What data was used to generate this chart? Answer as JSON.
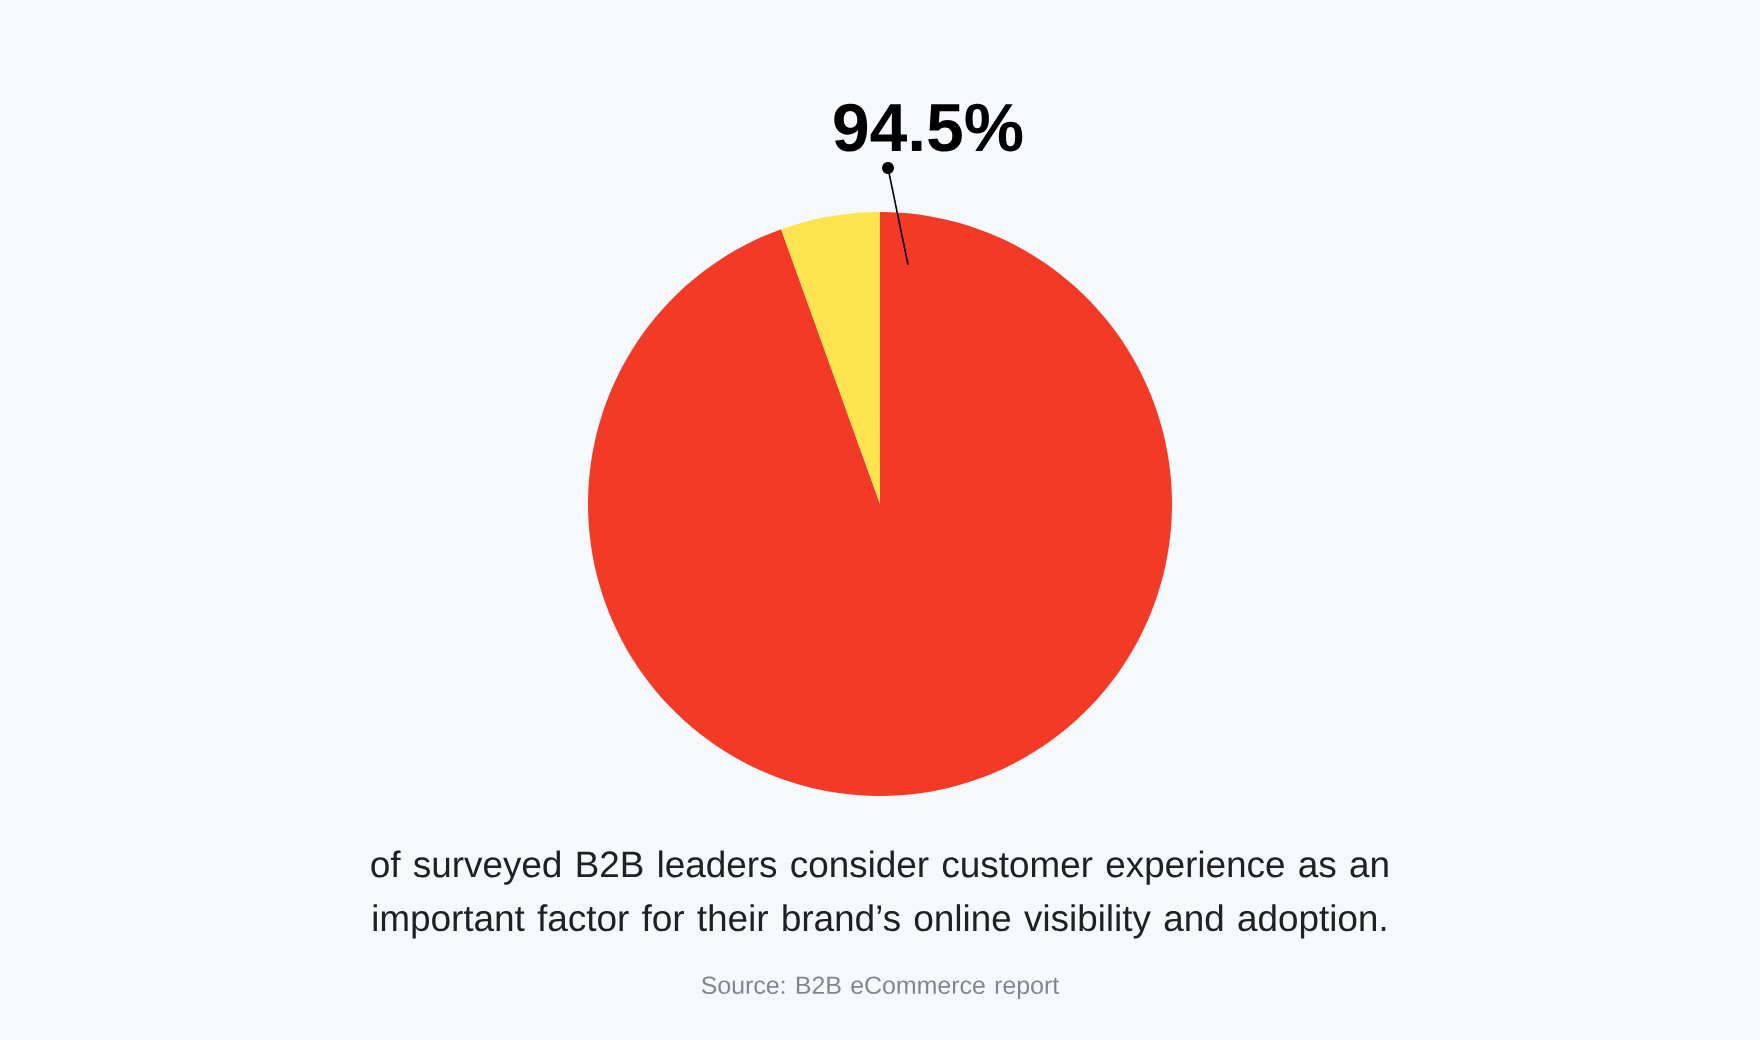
{
  "chart_data": {
    "type": "pie",
    "categories": [
      null,
      null
    ],
    "values": [
      94.5,
      5.5
    ],
    "colors": [
      "#f23a26",
      "#fde350"
    ],
    "value_labels": [
      "94.5%",
      null
    ],
    "annotations": [
      "of surveyed B2B leaders consider customer experience as an important factor for their brand’s online visibility and adoption.",
      "Source: B2B eCommerce report"
    ]
  }
}
